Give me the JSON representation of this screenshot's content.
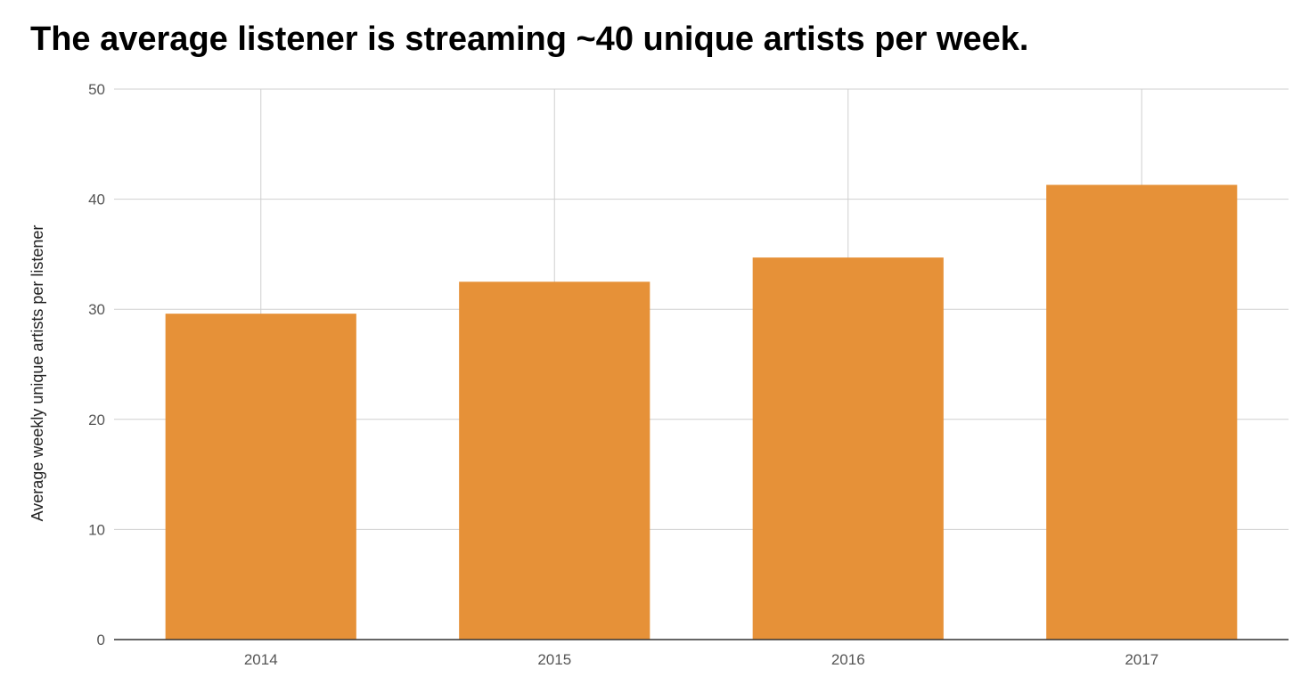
{
  "chart_data": {
    "type": "bar",
    "title": "The average listener is streaming ~40 unique artists per week.",
    "xlabel": "",
    "ylabel": "Average weekly unique artists per listener",
    "categories": [
      "2014",
      "2015",
      "2016",
      "2017"
    ],
    "values": [
      29.6,
      32.5,
      34.7,
      41.3
    ],
    "ylim": [
      0,
      50
    ],
    "yticks": [
      0,
      10,
      20,
      30,
      40,
      50
    ],
    "grid": true,
    "legend": "none",
    "bar_color": "#e69138"
  }
}
